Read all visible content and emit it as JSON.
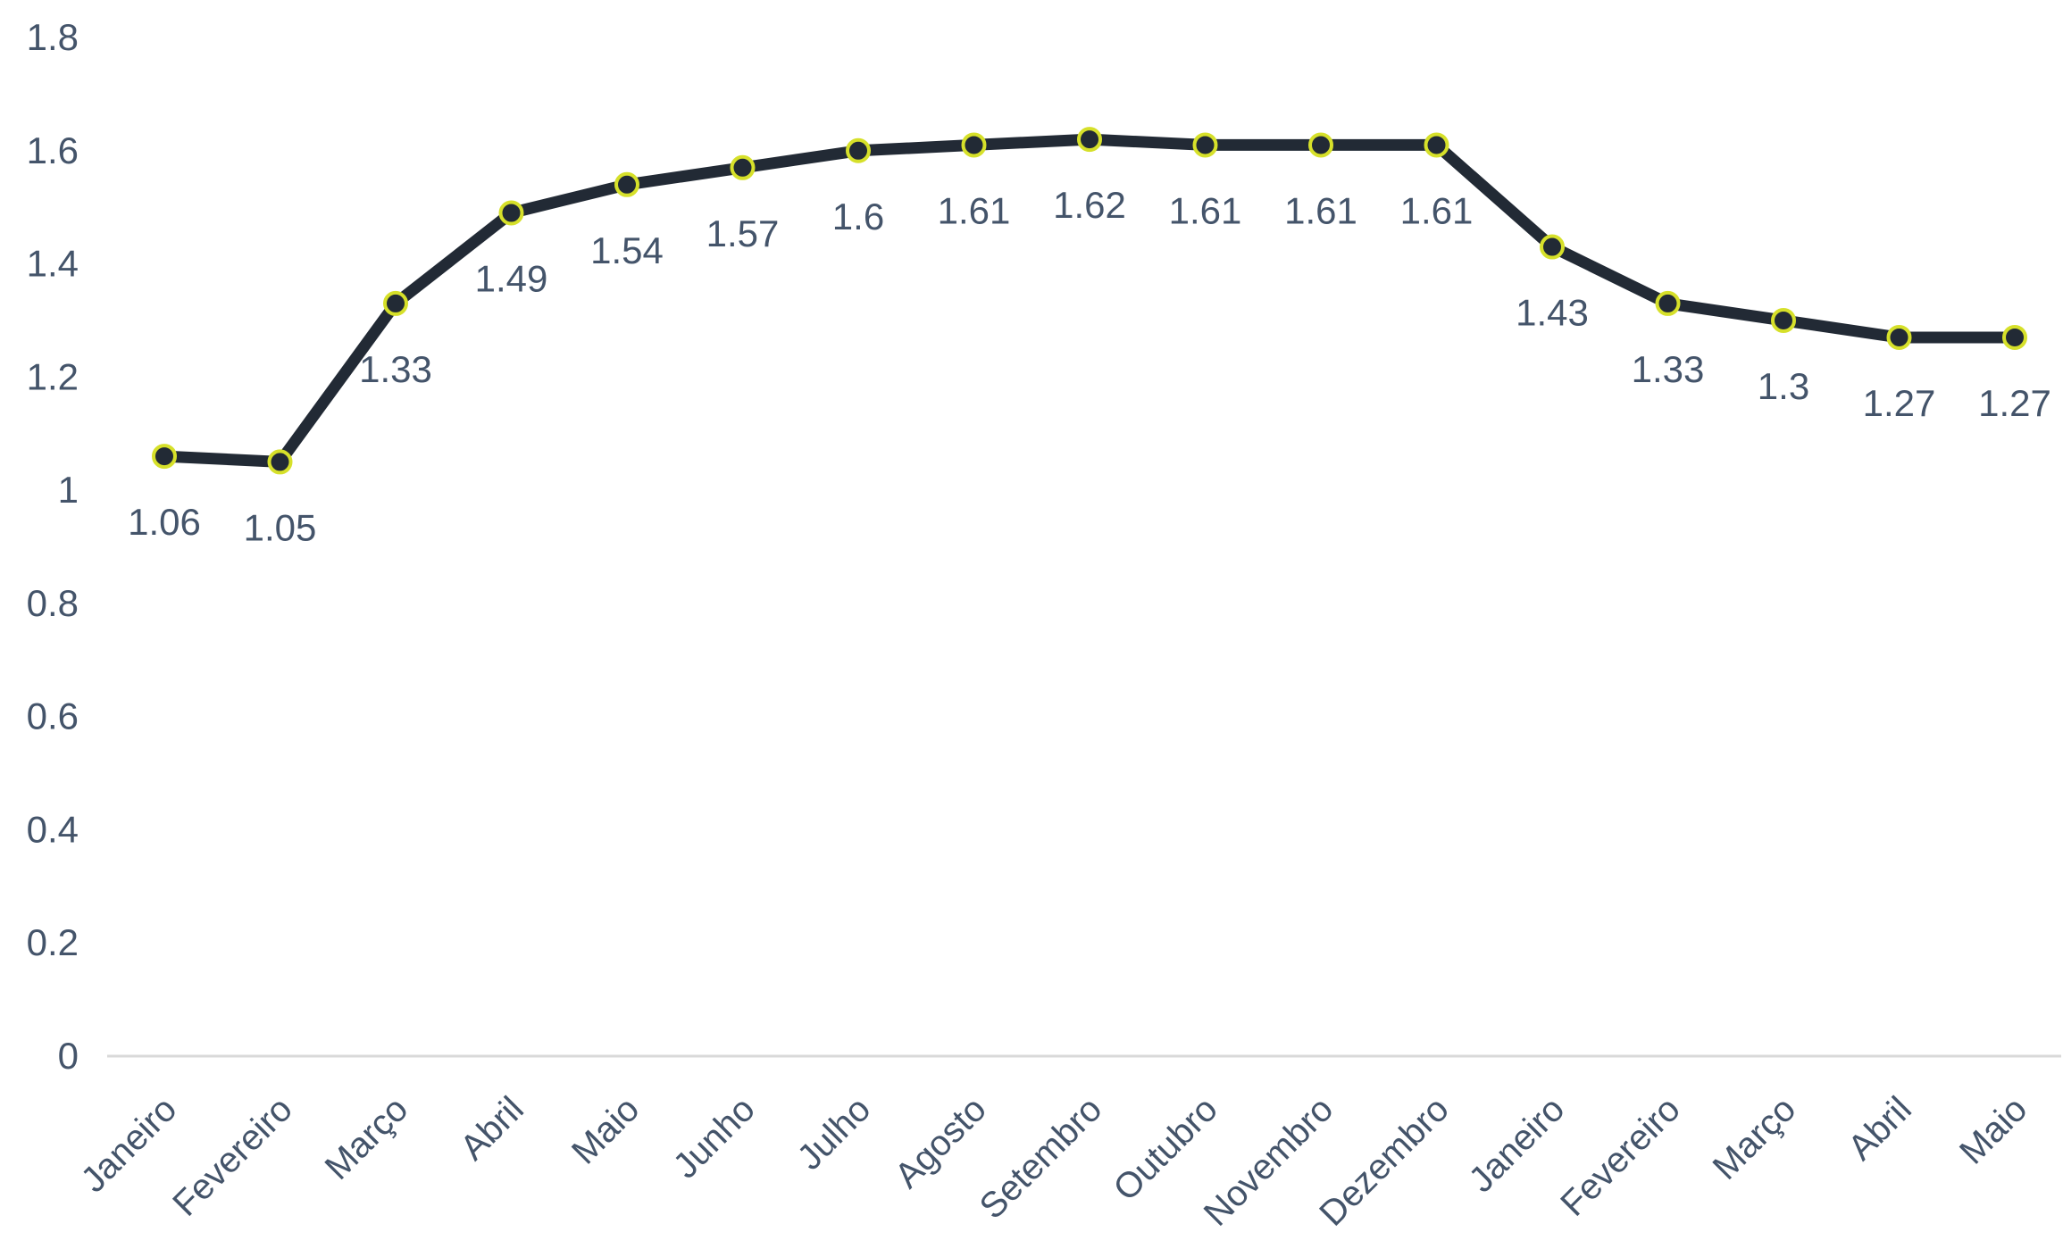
{
  "chart_data": {
    "type": "line",
    "categories": [
      "Janeiro",
      "Fevereiro",
      "Março",
      "Abril",
      "Maio",
      "Junho",
      "Julho",
      "Agosto",
      "Setembro",
      "Outubro",
      "Novembro",
      "Dezembro",
      "Janeiro",
      "Fevereiro",
      "Março",
      "Abril",
      "Maio"
    ],
    "series": [
      {
        "values": [
          1.06,
          1.05,
          1.33,
          1.49,
          1.54,
          1.57,
          1.6,
          1.61,
          1.62,
          1.61,
          1.61,
          1.61,
          1.43,
          1.33,
          1.3,
          1.27,
          1.27
        ]
      }
    ],
    "data_labels": [
      "1.06",
      "1.05",
      "1.33",
      "1.49",
      "1.54",
      "1.57",
      "1.6",
      "1.61",
      "1.62",
      "1.61",
      "1.61",
      "1.61",
      "1.43",
      "1.33",
      "1.3",
      "1.27",
      "1.27"
    ],
    "y_ticks": [
      "0",
      "0.2",
      "0.4",
      "0.6",
      "0.8",
      "1",
      "1.2",
      "1.4",
      "1.6",
      "1.8"
    ],
    "ylim": [
      0,
      1.8
    ],
    "title": "",
    "xlabel": "",
    "ylabel": "",
    "grid": false,
    "legend": "none",
    "colors": {
      "line": "#222a35",
      "marker_fill": "#222a35",
      "marker_stroke": "#d6e02a",
      "text": "#44546a",
      "axis": "#d9d9d9"
    }
  }
}
